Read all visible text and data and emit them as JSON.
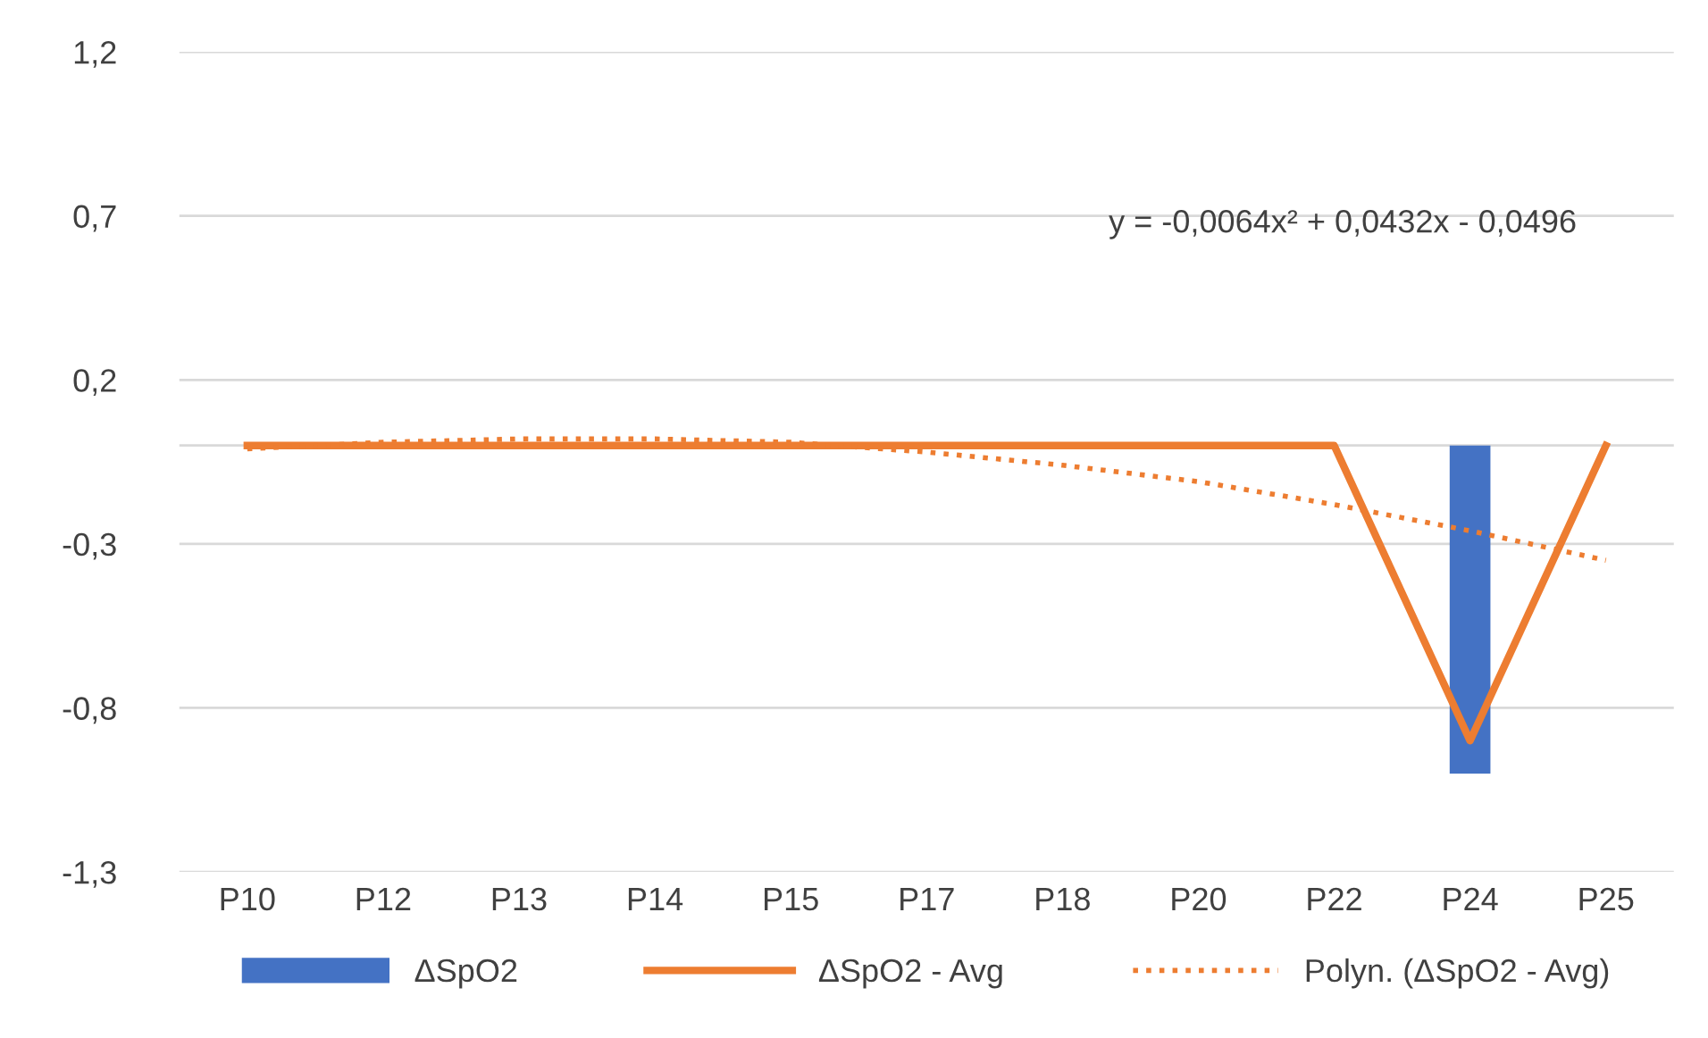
{
  "chart_data": {
    "type": "bar",
    "categories": [
      "P10",
      "P12",
      "P13",
      "P14",
      "P15",
      "P17",
      "P18",
      "P20",
      "P22",
      "P24",
      "P25"
    ],
    "series": [
      {
        "name": "ΔSpO2",
        "color": "#4472c4",
        "values": [
          0,
          0,
          0,
          0,
          0,
          0,
          0,
          0,
          0,
          -1.0,
          0
        ]
      },
      {
        "name": "ΔSpO2 - Avg",
        "type": "line",
        "color": "#ed7d31",
        "line_style": "solid",
        "values": [
          0,
          0,
          0,
          0,
          0,
          0,
          0,
          0,
          0,
          -0.9,
          0
        ]
      },
      {
        "name": "Polyn. (ΔSpO2 - Avg)",
        "type": "line",
        "color": "#ed7d31",
        "line_style": "dotted",
        "values": [
          -0.01,
          0.01,
          0.02,
          0.02,
          0.01,
          -0.02,
          -0.06,
          -0.11,
          -0.18,
          -0.26,
          -0.35
        ]
      }
    ],
    "ylim": [
      -1.3,
      1.2
    ],
    "yticks": [
      {
        "value": 1.2,
        "label": "1,2"
      },
      {
        "value": 0.7,
        "label": "0,7"
      },
      {
        "value": 0.2,
        "label": "0,2"
      },
      {
        "value": -0.3,
        "label": "-0,3"
      },
      {
        "value": -0.8,
        "label": "-0,8"
      },
      {
        "value": -1.3,
        "label": "-1,3"
      }
    ],
    "grid": "y",
    "legend": "bottom",
    "annotations": [
      "y = -0,0064x² + 0,0432x - 0,0496"
    ]
  }
}
